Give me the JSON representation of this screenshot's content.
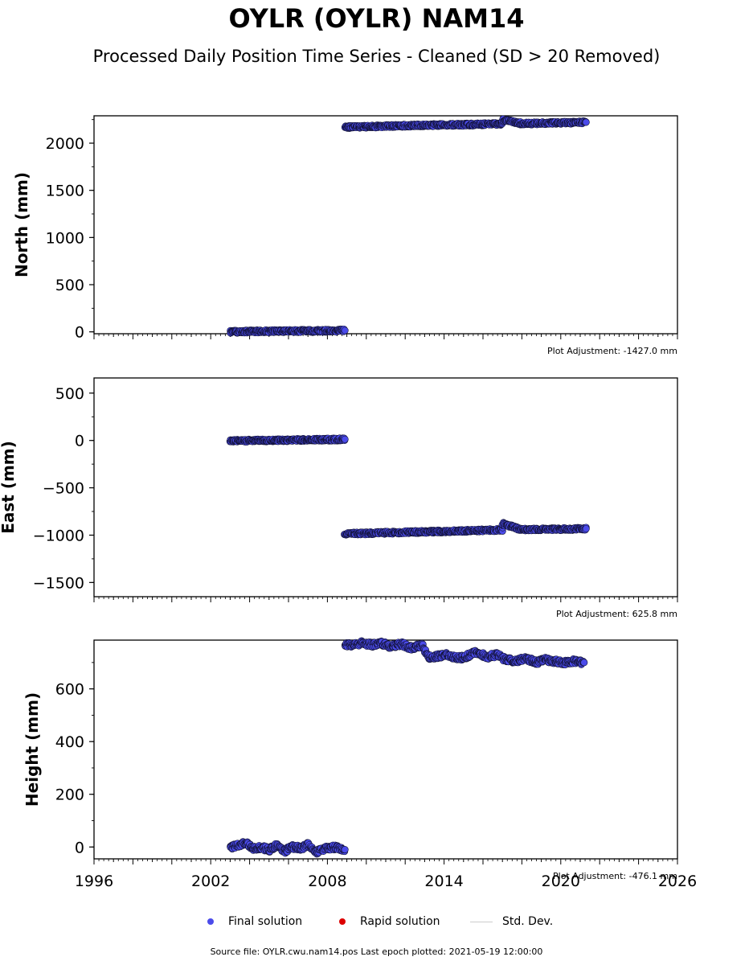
{
  "title": "OYLR (OYLR) NAM14",
  "subtitle": "Processed Daily Position Time Series - Cleaned (SD > 20 Removed)",
  "colors": {
    "final": "#4b4bea",
    "rapid": "#dd0000",
    "stddev": "#cccccc",
    "edge": "#111133"
  },
  "legend": {
    "final": "Final solution",
    "rapid": "Rapid solution",
    "stddev": "Std. Dev."
  },
  "footer": "Source file: OYLR.cwu.nam14.pos  Last epoch plotted: 2021-05-19 12:00:00",
  "chart_data": [
    {
      "type": "scatter",
      "ylabel": "North (mm)",
      "xlim": [
        1996,
        2026
      ],
      "ylim": [
        -20,
        2290
      ],
      "yticks": [
        0,
        500,
        1000,
        1500,
        2000
      ],
      "adjustment": "Plot Adjustment: -1427.0 mm",
      "show_xticklabels": false,
      "series": [
        {
          "x": [
            2003.0,
            2003.5,
            2004.0,
            2004.5,
            2005.0,
            2005.5,
            2006.0,
            2006.5,
            2007.0,
            2007.5,
            2008.0,
            2008.5,
            2008.9
          ],
          "y": [
            0,
            2,
            4,
            5,
            6,
            7,
            8,
            9,
            10,
            11,
            12,
            13,
            14
          ]
        },
        {
          "x": [
            2008.9,
            2009.5,
            2010.0,
            2011.0,
            2012.0,
            2013.0,
            2014.0,
            2015.0,
            2016.0,
            2017.0,
            2017.01,
            2018.0,
            2019.0,
            2020.0,
            2020.5,
            2021.0,
            2021.3
          ],
          "y": [
            2170,
            2172,
            2175,
            2180,
            2185,
            2190,
            2193,
            2196,
            2200,
            2205,
            2245,
            2208,
            2212,
            2215,
            2218,
            2220,
            2222
          ]
        }
      ]
    },
    {
      "type": "scatter",
      "ylabel": "East (mm)",
      "xlim": [
        1996,
        2026
      ],
      "ylim": [
        -1650,
        660
      ],
      "yticks": [
        500,
        0,
        -500,
        -1000,
        -1500
      ],
      "ytick_labels": [
        "500",
        "0",
        "−500",
        "−1000",
        "−1500"
      ],
      "adjustment": "Plot Adjustment: 625.8 mm",
      "show_xticklabels": false,
      "series": [
        {
          "x": [
            2003.0,
            2003.5,
            2004.0,
            2004.5,
            2005.0,
            2005.5,
            2006.0,
            2006.5,
            2007.0,
            2007.5,
            2008.0,
            2008.5,
            2008.9
          ],
          "y": [
            -5,
            -4,
            -2,
            0,
            1,
            2,
            4,
            5,
            6,
            8,
            9,
            10,
            12
          ]
        },
        {
          "x": [
            2008.9,
            2009.5,
            2010.0,
            2011.0,
            2012.0,
            2013.0,
            2014.0,
            2015.0,
            2016.0,
            2017.0,
            2017.01,
            2018.0,
            2019.0,
            2020.0,
            2020.5,
            2021.0,
            2021.3
          ],
          "y": [
            -985,
            -983,
            -980,
            -975,
            -970,
            -965,
            -960,
            -955,
            -950,
            -945,
            -880,
            -942,
            -940,
            -937,
            -935,
            -934,
            -932
          ]
        }
      ]
    },
    {
      "type": "scatter",
      "ylabel": "Height (mm)",
      "xlim": [
        1996,
        2026
      ],
      "ylim": [
        -45,
        785
      ],
      "yticks": [
        0,
        200,
        400,
        600
      ],
      "adjustment": "Plot Adjustment: -476.1 mm",
      "show_xticklabels": true,
      "xticks": [
        1996,
        2002,
        2008,
        2014,
        2020,
        2026
      ],
      "series": [
        {
          "x": [
            2003.0,
            2003.4,
            2003.8,
            2004.2,
            2004.6,
            2005.0,
            2005.4,
            2005.8,
            2006.2,
            2006.6,
            2007.0,
            2007.4,
            2007.8,
            2008.2,
            2008.6,
            2008.9
          ],
          "y": [
            0,
            5,
            15,
            -5,
            0,
            -10,
            5,
            -15,
            0,
            -5,
            10,
            -20,
            -10,
            0,
            -5,
            -10
          ]
        },
        {
          "x": [
            2008.9,
            2009.3,
            2009.8,
            2010.3,
            2010.8,
            2011.3,
            2011.8,
            2012.3,
            2012.9,
            2013.2,
            2013.7,
            2014.2,
            2014.7,
            2015.2,
            2015.7,
            2016.2,
            2016.7,
            2017.2,
            2017.7,
            2018.2,
            2018.7,
            2019.2,
            2019.7,
            2020.2,
            2020.7,
            2021.2
          ],
          "y": [
            770,
            765,
            775,
            768,
            772,
            760,
            770,
            755,
            765,
            720,
            725,
            730,
            715,
            725,
            740,
            720,
            730,
            710,
            705,
            715,
            700,
            710,
            705,
            700,
            705,
            700
          ]
        }
      ]
    }
  ]
}
